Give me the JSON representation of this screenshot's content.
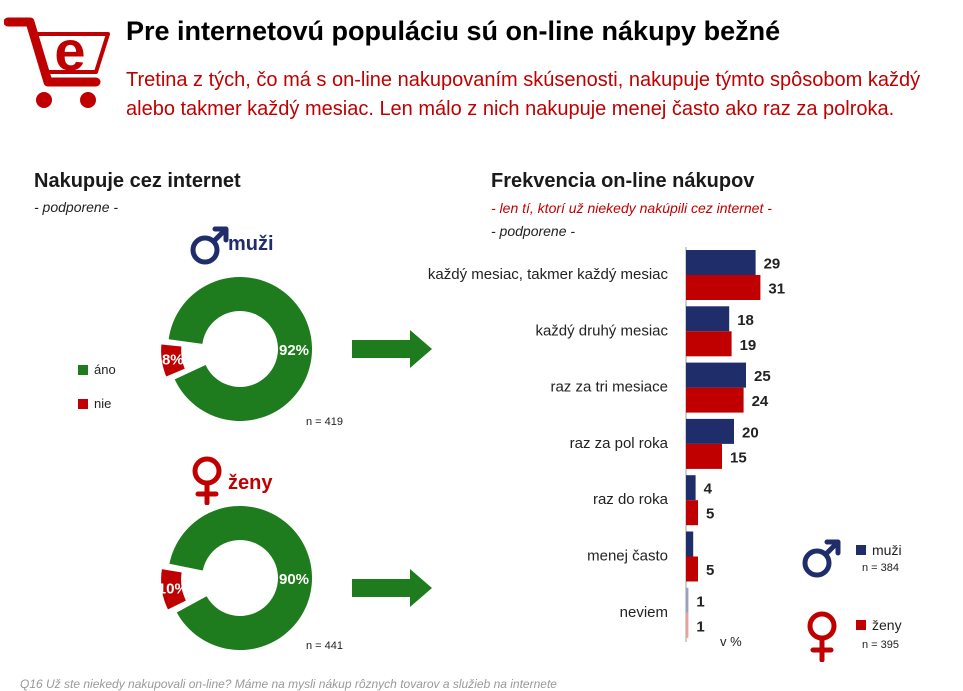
{
  "title": "Pre internetovú populáciu sú on-line nákupy bežné",
  "subtitle": "Tretina z tých, čo má s on-line nakupovaním skúsenosti, nakupuje týmto spôsobom každý alebo takmer každý mesiac. Len málo z nich nakupuje menej často ako raz za polroka.",
  "left_panel": {
    "title": "Nakupuje cez internet",
    "subtitle": "- podporene -"
  },
  "right_panel": {
    "title": "Frekvencia on-line nákupov",
    "subtitle": "- len tí, ktorí už niekedy nakúpili cez internet -",
    "subtitle2": "- podporene -",
    "unit": "v %"
  },
  "colors": {
    "green": "#1e7b1e",
    "red": "#c00000",
    "navy": "#1f2d6b",
    "pale_red": "#e8a0a0"
  },
  "icons": {
    "logo": "e-shopping-cart-logo",
    "male": "male-symbol-icon",
    "female": "female-symbol-icon"
  },
  "chart_data": [
    {
      "type": "pie",
      "subtype": "donut",
      "group": "muži",
      "categories": [
        "áno",
        "nie"
      ],
      "values": [
        92,
        8
      ],
      "value_labels": [
        "92%",
        "8%"
      ],
      "n_label": "n = 419",
      "legend": [
        "áno",
        "nie"
      ]
    },
    {
      "type": "pie",
      "subtype": "donut",
      "group": "ženy",
      "categories": [
        "áno",
        "nie"
      ],
      "values": [
        90,
        10
      ],
      "value_labels": [
        "90%",
        "10%"
      ],
      "n_label": "n = 441"
    },
    {
      "type": "bar",
      "orientation": "horizontal",
      "categories": [
        "každý mesiac, takmer každý mesiac",
        "každý druhý mesiac",
        "raz za tri mesiace",
        "raz za pol roka",
        "raz do roka",
        "menej často",
        "neviem"
      ],
      "series": [
        {
          "name": "muži",
          "values": [
            29,
            18,
            25,
            20,
            4,
            3,
            1
          ],
          "labels": [
            "29",
            "18",
            "25",
            "20",
            "4",
            "",
            "1"
          ],
          "n_label": "n = 384"
        },
        {
          "name": "ženy",
          "values": [
            31,
            19,
            24,
            15,
            5,
            5,
            1
          ],
          "labels": [
            "31",
            "19",
            "24",
            "15",
            "5",
            "5",
            "1"
          ],
          "n_label": "n = 395"
        }
      ],
      "xlim": [
        0,
        35
      ]
    }
  ],
  "footnote": "Q16   Už ste niekedy nakupovali on-line? Máme na mysli nákup rôznych tovarov a služieb na internete"
}
